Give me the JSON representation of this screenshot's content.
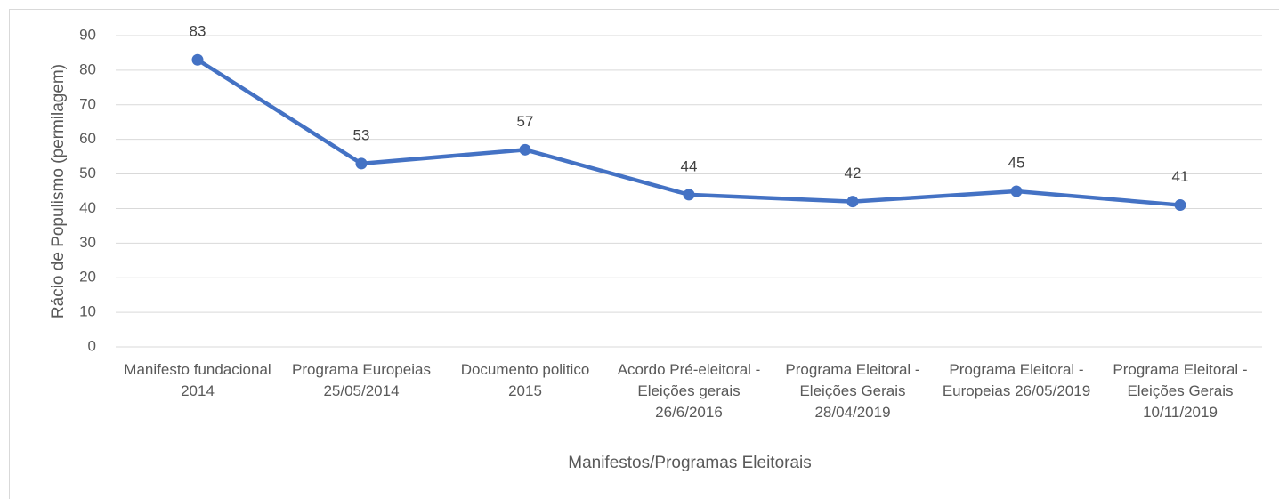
{
  "chart_data": {
    "type": "line",
    "x_label": "Manifestos/Programas Eleitorais",
    "y_label": "Rácio de Populismo (permilagem)",
    "categories": [
      "Manifesto fundacional 2014",
      "Programa Europeias 25/05/2014",
      "Documento politico 2015",
      "Acordo Pré-eleitoral - Eleições gerais 26/6/2016",
      "Programa Eleitoral - Eleições Gerais 28/04/2019",
      "Programa Eleitoral - Europeias 26/05/2019",
      "Programa Eleitoral - Eleições Gerais 10/11/2019"
    ],
    "series": [
      {
        "name": "Rácio de Populismo",
        "color": "#4472c4",
        "values": [
          83,
          53,
          57,
          44,
          42,
          45,
          41
        ]
      }
    ],
    "ylim": [
      0,
      90
    ],
    "yticks": [
      0,
      10,
      20,
      30,
      40,
      50,
      60,
      70,
      80,
      90
    ],
    "grid": true,
    "data_labels": true
  }
}
